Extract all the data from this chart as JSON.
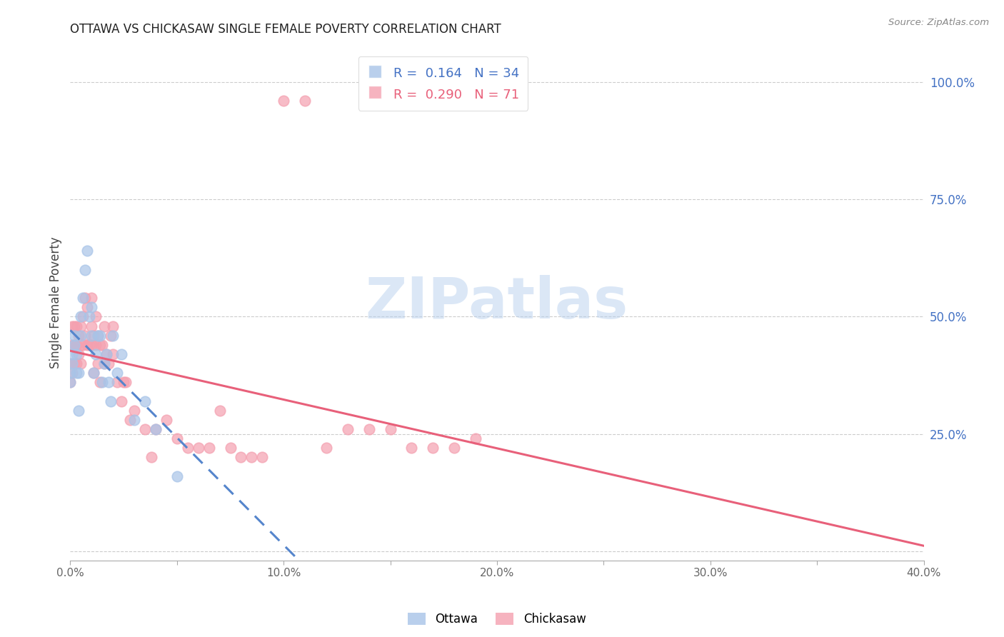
{
  "title": "OTTAWA VS CHICKASAW SINGLE FEMALE POVERTY CORRELATION CHART",
  "source": "Source: ZipAtlas.com",
  "ylabel": "Single Female Poverty",
  "xlabel_ticks": [
    "0.0%",
    "",
    "10.0%",
    "",
    "20.0%",
    "",
    "30.0%",
    "",
    "40.0%"
  ],
  "xlabel_vals": [
    0.0,
    0.05,
    0.1,
    0.15,
    0.2,
    0.25,
    0.3,
    0.35,
    0.4
  ],
  "ylabel_ticks_right": [
    "100.0%",
    "75.0%",
    "50.0%",
    "25.0%"
  ],
  "ylabel_vals_right": [
    1.0,
    0.75,
    0.5,
    0.25
  ],
  "xlim": [
    0.0,
    0.4
  ],
  "ylim": [
    -0.02,
    1.08
  ],
  "ottawa_color": "#a8c4e8",
  "chickasaw_color": "#f4a0b0",
  "ottawa_line_color": "#5585cc",
  "chickasaw_line_color": "#e8607a",
  "ottawa_R": 0.164,
  "ottawa_N": 34,
  "chickasaw_R": 0.29,
  "chickasaw_N": 71,
  "watermark": "ZIPatlas",
  "watermark_color": "#b8d0ee",
  "legend_label_ottawa": "Ottawa",
  "legend_label_chickasaw": "Chickasaw",
  "ottawa_x": [
    0.0,
    0.0,
    0.001,
    0.001,
    0.002,
    0.002,
    0.003,
    0.003,
    0.004,
    0.004,
    0.005,
    0.005,
    0.006,
    0.007,
    0.008,
    0.009,
    0.01,
    0.01,
    0.011,
    0.012,
    0.013,
    0.014,
    0.015,
    0.016,
    0.017,
    0.018,
    0.019,
    0.02,
    0.022,
    0.024,
    0.03,
    0.035,
    0.04,
    0.05
  ],
  "ottawa_y": [
    0.36,
    0.38,
    0.4,
    0.42,
    0.44,
    0.46,
    0.38,
    0.42,
    0.38,
    0.3,
    0.46,
    0.5,
    0.54,
    0.6,
    0.64,
    0.5,
    0.52,
    0.46,
    0.38,
    0.42,
    0.46,
    0.46,
    0.36,
    0.4,
    0.42,
    0.36,
    0.32,
    0.46,
    0.38,
    0.42,
    0.28,
    0.32,
    0.26,
    0.16
  ],
  "chickasaw_x": [
    0.0,
    0.0,
    0.001,
    0.001,
    0.001,
    0.002,
    0.002,
    0.002,
    0.003,
    0.003,
    0.003,
    0.004,
    0.004,
    0.005,
    0.005,
    0.005,
    0.006,
    0.006,
    0.007,
    0.007,
    0.008,
    0.008,
    0.009,
    0.01,
    0.01,
    0.01,
    0.011,
    0.011,
    0.012,
    0.012,
    0.013,
    0.013,
    0.014,
    0.014,
    0.015,
    0.016,
    0.016,
    0.017,
    0.018,
    0.019,
    0.02,
    0.02,
    0.022,
    0.024,
    0.025,
    0.026,
    0.028,
    0.03,
    0.035,
    0.038,
    0.04,
    0.045,
    0.05,
    0.055,
    0.06,
    0.065,
    0.07,
    0.075,
    0.08,
    0.085,
    0.09,
    0.1,
    0.11,
    0.12,
    0.13,
    0.14,
    0.15,
    0.16,
    0.17,
    0.18,
    0.19
  ],
  "chickasaw_y": [
    0.36,
    0.4,
    0.38,
    0.44,
    0.48,
    0.4,
    0.44,
    0.48,
    0.4,
    0.44,
    0.48,
    0.42,
    0.46,
    0.4,
    0.44,
    0.48,
    0.44,
    0.5,
    0.46,
    0.54,
    0.44,
    0.52,
    0.44,
    0.44,
    0.48,
    0.54,
    0.38,
    0.46,
    0.44,
    0.5,
    0.4,
    0.46,
    0.36,
    0.44,
    0.44,
    0.4,
    0.48,
    0.42,
    0.4,
    0.46,
    0.42,
    0.48,
    0.36,
    0.32,
    0.36,
    0.36,
    0.28,
    0.3,
    0.26,
    0.2,
    0.26,
    0.28,
    0.24,
    0.22,
    0.22,
    0.22,
    0.3,
    0.22,
    0.2,
    0.2,
    0.2,
    0.96,
    0.96,
    0.22,
    0.26,
    0.26,
    0.26,
    0.22,
    0.22,
    0.22,
    0.24
  ]
}
